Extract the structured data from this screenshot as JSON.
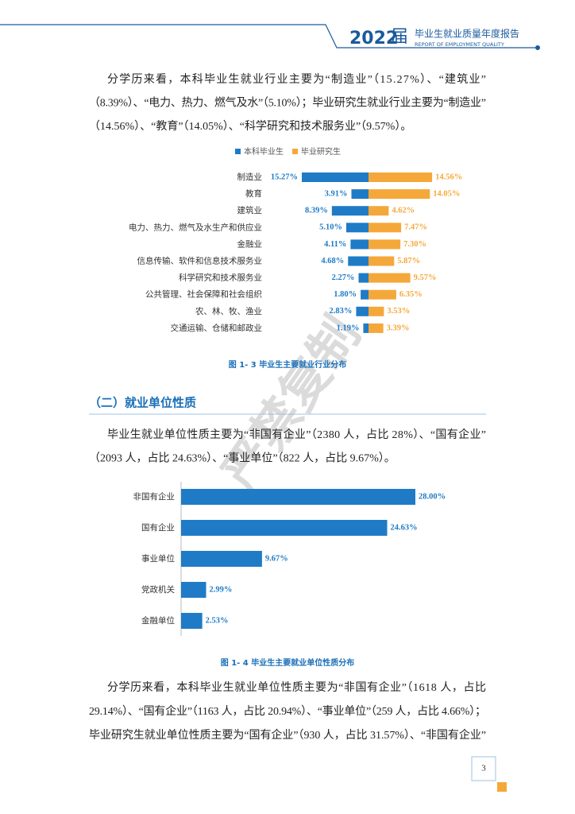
{
  "header": {
    "year": "2022",
    "suffix": "届",
    "title": "毕业生就业质量年度报告",
    "subtitle": "REPORT OF EMPLOYMENT QUALITY"
  },
  "paragraphs": [
    [
      "分学历来看，本科毕业生就业行业主要为“制造业”（15.27%）、“建筑业”",
      "（8.39%）、“电力、热力、燃气及水”（5.10%）；毕业研究生就业行业主要为“制造业”",
      "（14.56%）、“教育”（14.05%）、“科学研究和技术服务业”（9.57%）。"
    ],
    [
      "毕业生就业单位性质主要为“非国有企业”（2380 人，占比 28%）、“国有企业”",
      "（2093 人，占比 24.63%）、“事业单位”（822 人，占比 9.67%）。"
    ],
    [
      "分学历来看，本科毕业生就业单位性质主要为“非国有企业”（1618 人，占比",
      "29.14%）、“国有企业”（1163 人，占比 20.94%）、“事业单位”（259 人，占比 4.66%）；",
      "毕业研究生就业单位性质主要为“国有企业”（930 人，占比 31.57%）、“非国有企业”"
    ]
  ],
  "section_heading": "（二）就业单位性质",
  "watermark": "严禁复制",
  "page_number": "3",
  "chart_data": [
    {
      "type": "butterfly",
      "caption": "图 1- 3  毕业生主要就业行业分布",
      "categories": [
        "制造业",
        "教育",
        "建筑业",
        "电力、热力、燃气及水生产和供应业",
        "金融业",
        "信息传输、软件和信息技术服务业",
        "科学研究和技术服务业",
        "公共管理、社会保障和社会组织",
        "农、林、牧、渔业",
        "交通运输、仓储和邮政业"
      ],
      "series": [
        {
          "name": "本科毕业生",
          "color": "#1f7bc6",
          "values": [
            15.27,
            3.91,
            8.39,
            5.1,
            4.11,
            4.68,
            2.27,
            1.8,
            2.83,
            1.19
          ],
          "value_labels": [
            "15.27%",
            "3.91%",
            "8.39%",
            "5.10%",
            "4.11%",
            "4.68%",
            "2.27%",
            "1.80%",
            "2.83%",
            "1.19%"
          ]
        },
        {
          "name": "毕业研究生",
          "color": "#f5a83a",
          "values": [
            14.56,
            14.05,
            4.62,
            7.47,
            7.3,
            5.87,
            9.57,
            6.35,
            3.53,
            3.39
          ],
          "value_labels": [
            "14.56%",
            "14.05%",
            "4.62%",
            "7.47%",
            "7.30%",
            "5.87%",
            "9.57%",
            "6.35%",
            "3.53%",
            "3.39%"
          ]
        }
      ],
      "xlim": [
        0,
        16
      ],
      "legend": "top"
    },
    {
      "type": "hbar",
      "caption": "图 1- 4  毕业生主要就业单位性质分布",
      "categories": [
        "非国有企业",
        "国有企业",
        "事业单位",
        "党政机关",
        "金融单位"
      ],
      "values": [
        28,
        24.63,
        9.67,
        2.99,
        2.53
      ],
      "value_labels": [
        "28.00%",
        "24.63%",
        "9.67%",
        "2.99%",
        "2.53%"
      ],
      "color": "#1f7bc6",
      "xlim": [
        0,
        28
      ]
    }
  ]
}
